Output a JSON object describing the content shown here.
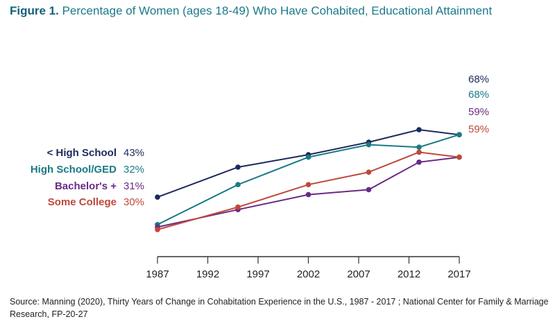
{
  "figure": {
    "label": "Figure 1.",
    "title": "Percentage of Women (ages 18-49) Who Have Cohabited, Educational Attainment"
  },
  "source": "Source: Manning (2020), Thirty Years of Change in Cohabitation Experience in the U.S., 1987 - 2017 ; National Center for Family & Marriage Research, FP-20-27",
  "chart_data": {
    "type": "line",
    "title": "Percentage of Women (ages 18-49) Who Have Cohabited, Educational Attainment",
    "xlabel": "",
    "ylabel": "",
    "x_ticks": [
      "1987",
      "1992",
      "1997",
      "2002",
      "2007",
      "2012",
      "2017"
    ],
    "xlim": [
      1987,
      2017
    ],
    "ylim": [
      0,
      80
    ],
    "grid": false,
    "legend": "direct labels at line ends",
    "x": [
      1987,
      1995,
      2002,
      2008,
      2013,
      2017
    ],
    "series": [
      {
        "name": "< High School",
        "color": "#1b2a5a",
        "values": [
          43,
          55,
          60,
          65,
          70,
          68
        ],
        "start_label": "43%",
        "end_label": "68%"
      },
      {
        "name": "High School/GED",
        "color": "#1a7a86",
        "values": [
          32,
          48,
          59,
          64,
          63,
          68
        ],
        "start_label": "32%",
        "end_label": "68%"
      },
      {
        "name": "Bachelor's +",
        "color": "#6a2a86",
        "values": [
          31,
          38,
          44,
          46,
          57,
          59
        ],
        "start_label": "31%",
        "end_label": "59%"
      },
      {
        "name": "Some College",
        "color": "#c0473a",
        "values": [
          30,
          39,
          48,
          53,
          61,
          59
        ],
        "start_label": "30%",
        "end_label": "59%"
      }
    ]
  }
}
